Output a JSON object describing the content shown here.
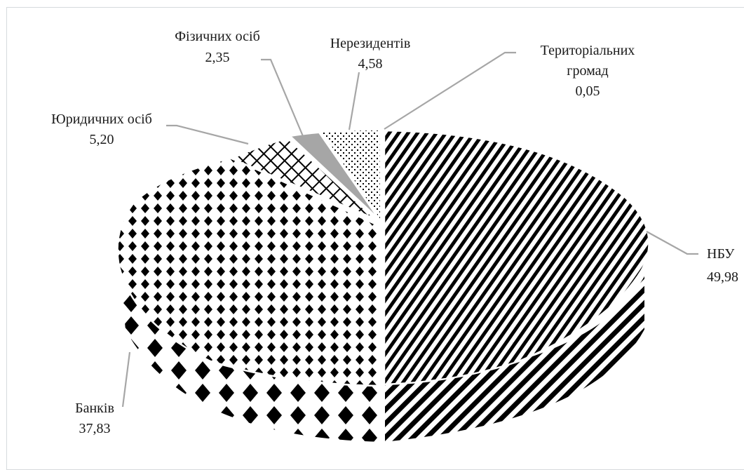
{
  "chart_data": {
    "type": "pie",
    "style": "3d-exploded",
    "legend": "none",
    "slices": [
      {
        "label": "НБУ",
        "value": 49.98,
        "value_text": "49,98",
        "pattern": "diagonal-stripes",
        "color": "#000000"
      },
      {
        "label": "Банків",
        "value": 37.83,
        "value_text": "37,83",
        "pattern": "diamond-checker",
        "color": "#000000"
      },
      {
        "label": "Юридичних осіб",
        "value": 5.2,
        "value_text": "5,20",
        "pattern": "crosshatch",
        "color": "#000000"
      },
      {
        "label": "Фізичних осіб",
        "value": 2.35,
        "value_text": "2,35",
        "pattern": "solid-gray",
        "color": "#a6a6a6"
      },
      {
        "label": "Нерезидентів",
        "value": 4.58,
        "value_text": "4,58",
        "pattern": "dots",
        "color": "#000000"
      },
      {
        "label": "Територіальних громад",
        "label_lines": [
          "Територіальних",
          "громад"
        ],
        "value": 0.05,
        "value_text": "0,05",
        "pattern": "none",
        "color": "#000000"
      }
    ]
  }
}
